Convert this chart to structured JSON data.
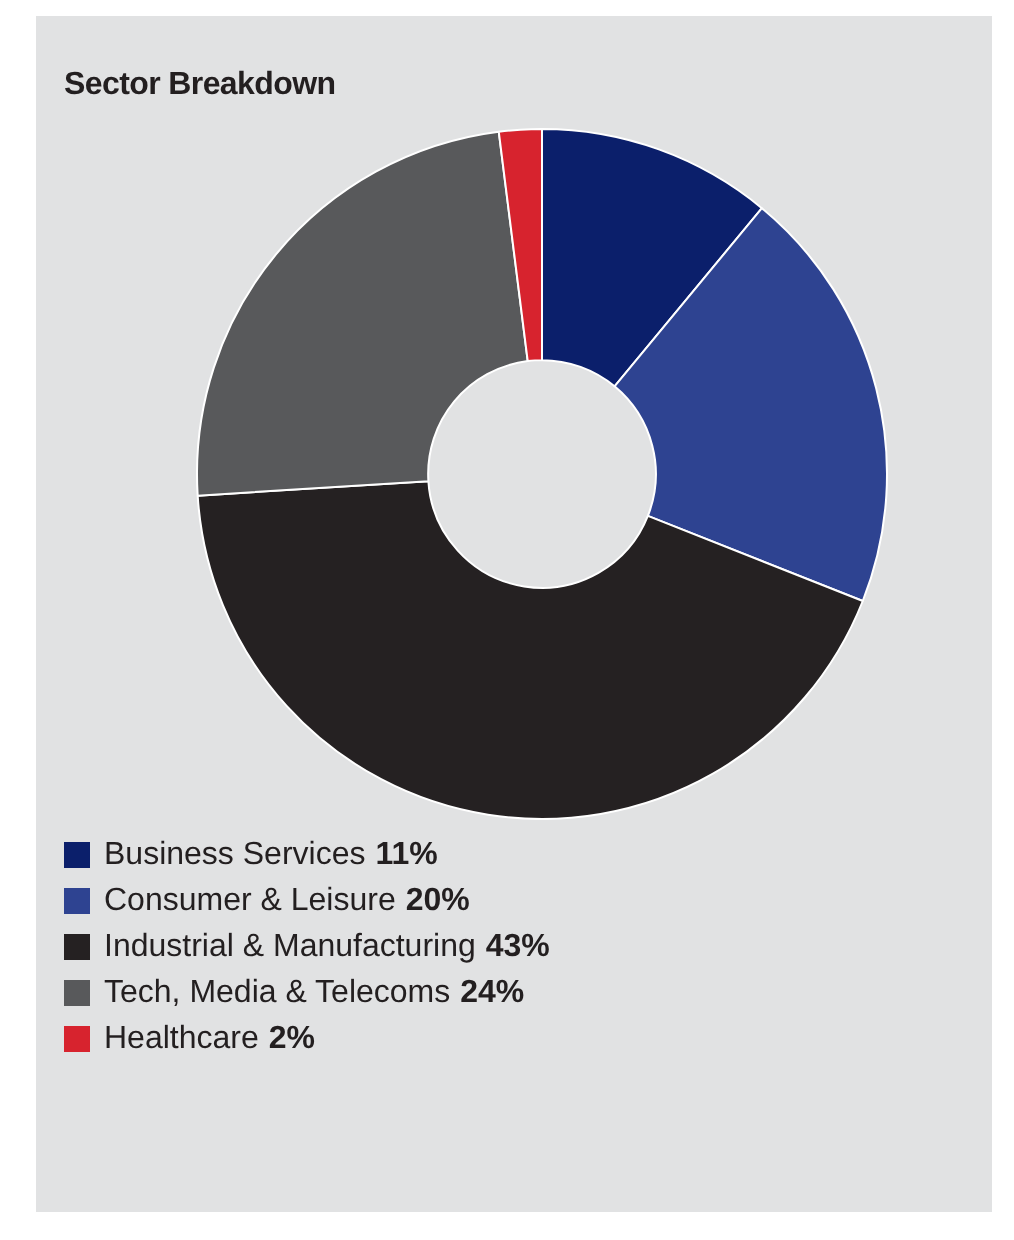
{
  "chart_data": {
    "type": "donut",
    "title": "Sector Breakdown",
    "categories": [
      "Business Services",
      "Consumer & Leisure",
      "Industrial & Manufacturing",
      "Tech, Media & Telecoms",
      "Healthcare"
    ],
    "values": [
      11,
      20,
      43,
      24,
      2
    ],
    "colors": [
      "#0b1f6b",
      "#2e4391",
      "#252122",
      "#58595b",
      "#d7232e"
    ],
    "value_labels": [
      "11%",
      "20%",
      "43%",
      "24%",
      "2%"
    ],
    "legend": "bottom"
  }
}
